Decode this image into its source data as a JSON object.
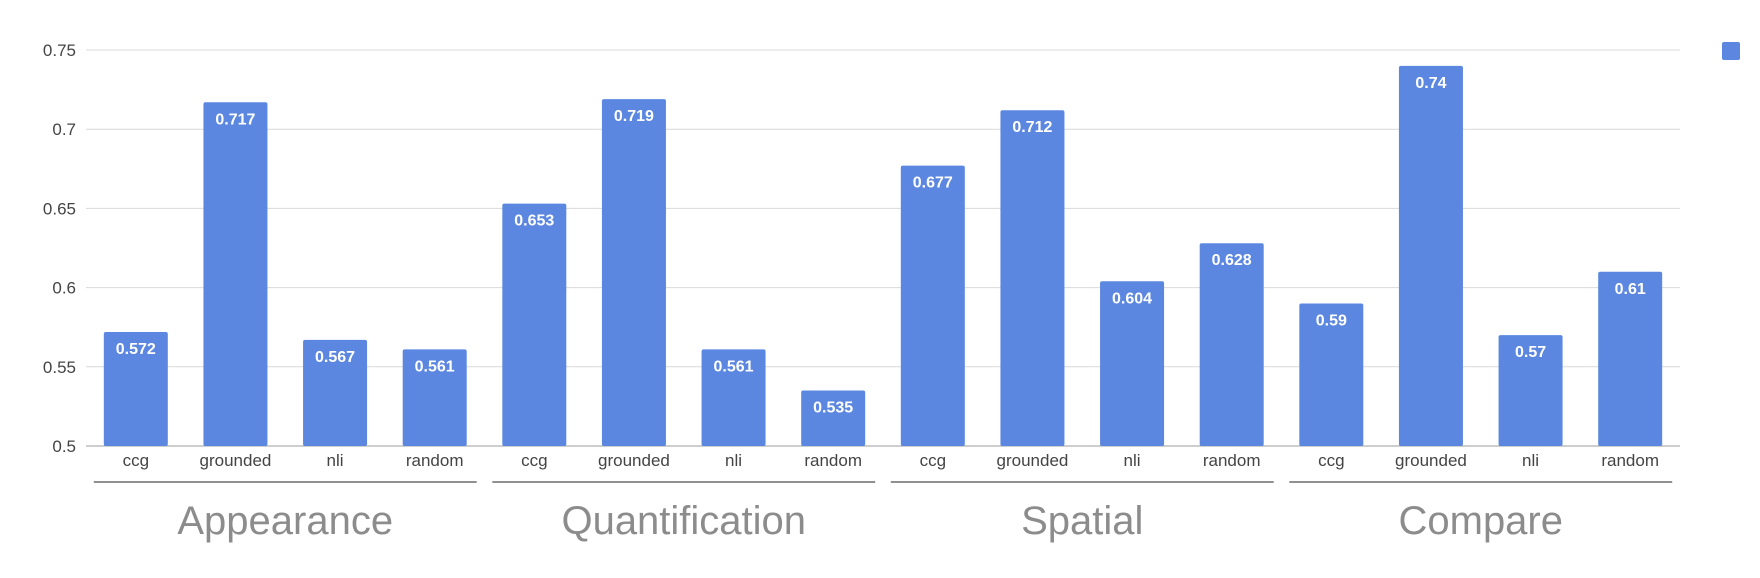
{
  "chart_data": {
    "type": "bar",
    "title": "",
    "xlabel": "",
    "ylabel": "",
    "ylim": [
      0.5,
      0.75
    ],
    "yticks": [
      "0.5",
      "0.55",
      "0.6",
      "0.65",
      "0.7",
      "0.75"
    ],
    "grid": true,
    "legend": "top-right",
    "bar_color": "#5b87e0",
    "groups": [
      {
        "name": "Appearance",
        "categories": [
          "ccg",
          "grounded",
          "nli",
          "random"
        ],
        "values": [
          0.572,
          0.717,
          0.567,
          0.561
        ],
        "labels": [
          "0.572",
          "0.717",
          "0.567",
          "0.561"
        ]
      },
      {
        "name": "Quantification",
        "categories": [
          "ccg",
          "grounded",
          "nli",
          "random"
        ],
        "values": [
          0.653,
          0.719,
          0.561,
          0.535
        ],
        "labels": [
          "0.653",
          "0.719",
          "0.561",
          "0.535"
        ]
      },
      {
        "name": "Spatial",
        "categories": [
          "ccg",
          "grounded",
          "nli",
          "random"
        ],
        "values": [
          0.677,
          0.712,
          0.604,
          0.628
        ],
        "labels": [
          "0.677",
          "0.712",
          "0.604",
          "0.628"
        ]
      },
      {
        "name": "Compare",
        "categories": [
          "ccg",
          "grounded",
          "nli",
          "random"
        ],
        "values": [
          0.59,
          0.74,
          0.57,
          0.61
        ],
        "labels": [
          "0.59",
          "0.74",
          "0.57",
          "0.61"
        ]
      }
    ]
  }
}
